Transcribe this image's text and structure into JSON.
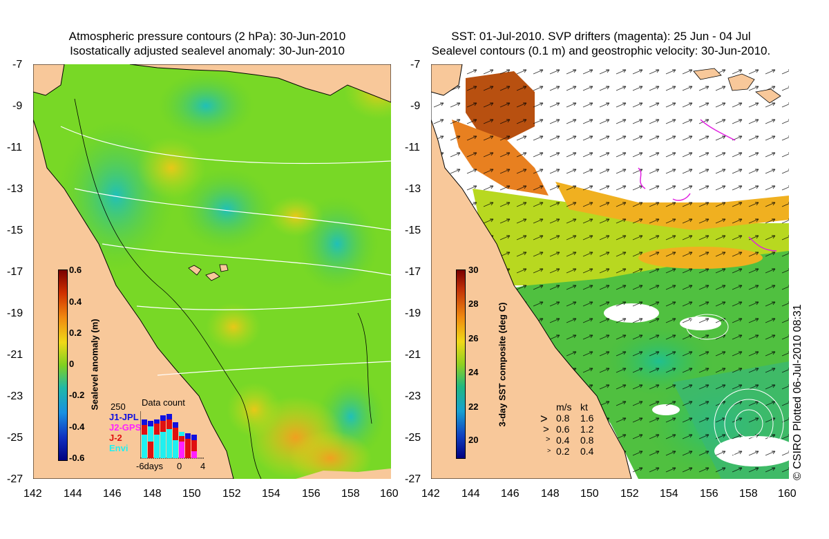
{
  "left_panel": {
    "title_line1": "Atmospheric pressure contours (2 hPa): 30-Jun-2010",
    "title_line2": "Isostatically adjusted sealevel anomaly: 30-Jun-2010",
    "colorbar": {
      "label": "Sealevel anomaly (m)",
      "ticks": [
        "0.6",
        "0.4",
        "0.2",
        "0",
        "-0.2",
        "-0.4",
        "-0.6"
      ],
      "range": [
        -0.6,
        0.6
      ]
    },
    "data_count": {
      "title": "Data count",
      "max_label": "250",
      "series": [
        {
          "name": "J1-JPL",
          "color": "#1010e0"
        },
        {
          "name": "J2-GPS",
          "color": "#ff20ff"
        },
        {
          "name": "J-2",
          "color": "#e01010"
        },
        {
          "name": "Envi",
          "color": "#20f0f0"
        }
      ],
      "x_labels": [
        "-6days",
        "0",
        "4"
      ]
    }
  },
  "right_panel": {
    "title_line1": "SST: 01-Jul-2010. SVP drifters (magenta): 25 Jun - 04 Jul",
    "title_line2": "Sealevel contours (0.1 m) and geostrophic velocity: 30-Jun-2010.",
    "colorbar": {
      "label": "3-day SST composite (deg C)",
      "ticks": [
        "30",
        "28",
        "26",
        "24",
        "22",
        "20"
      ],
      "range": [
        19,
        30
      ]
    },
    "velocity_legend": {
      "header_ms": "m/s",
      "header_kt": "kt",
      "rows": [
        {
          "ms": "0.8",
          "kt": "1.6"
        },
        {
          "ms": "0.6",
          "kt": "1.2"
        },
        {
          "ms": "0.4",
          "kt": "0.8"
        },
        {
          "ms": "0.2",
          "kt": "0.4"
        }
      ]
    },
    "credit": "© CSIRO Plotted 06-Jul-2010 08:31"
  },
  "axes": {
    "y_labels": [
      "-7",
      "-9",
      "-11",
      "-13",
      "-15",
      "-17",
      "-19",
      "-21",
      "-23",
      "-25",
      "-27"
    ],
    "x_labels": [
      "142",
      "144",
      "146",
      "148",
      "150",
      "152",
      "154",
      "156",
      "158",
      "160"
    ]
  },
  "colors": {
    "land": "#f8c89a",
    "sea_green": "#5fd02a",
    "sea_cyan": "#28c8b0",
    "sea_yellow": "#e8d818",
    "sea_orange": "#f0a020",
    "brown": "#b05010"
  }
}
